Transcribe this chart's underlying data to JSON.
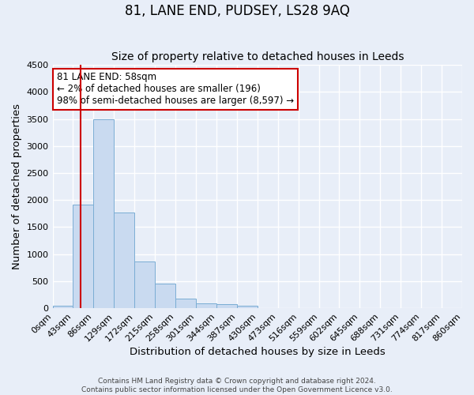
{
  "title": "81, LANE END, PUDSEY, LS28 9AQ",
  "subtitle": "Size of property relative to detached houses in Leeds",
  "xlabel": "Distribution of detached houses by size in Leeds",
  "ylabel": "Number of detached properties",
  "bar_values": [
    50,
    1920,
    3500,
    1770,
    860,
    460,
    175,
    95,
    70,
    50,
    0,
    0,
    0,
    0,
    0,
    0,
    0,
    0,
    0,
    0
  ],
  "bar_labels": [
    "0sqm",
    "43sqm",
    "86sqm",
    "129sqm",
    "172sqm",
    "215sqm",
    "258sqm",
    "301sqm",
    "344sqm",
    "387sqm",
    "430sqm",
    "473sqm",
    "516sqm",
    "559sqm",
    "602sqm",
    "645sqm",
    "688sqm",
    "731sqm",
    "774sqm",
    "817sqm",
    "860sqm"
  ],
  "bar_color": "#c9daf0",
  "bar_edge_color": "#7aadd4",
  "ylim": [
    0,
    4500
  ],
  "yticks": [
    0,
    500,
    1000,
    1500,
    2000,
    2500,
    3000,
    3500,
    4000,
    4500
  ],
  "property_line_color": "#cc0000",
  "annotation_text": "81 LANE END: 58sqm\n← 2% of detached houses are smaller (196)\n98% of semi-detached houses are larger (8,597) →",
  "annotation_box_color": "#ffffff",
  "annotation_box_edge": "#cc0000",
  "footer_line1": "Contains HM Land Registry data © Crown copyright and database right 2024.",
  "footer_line2": "Contains public sector information licensed under the Open Government Licence v3.0.",
  "background_color": "#e8eef8",
  "grid_color": "#ffffff",
  "title_fontsize": 12,
  "subtitle_fontsize": 10,
  "axis_label_fontsize": 9.5,
  "tick_fontsize": 8,
  "annotation_fontsize": 8.5,
  "footer_fontsize": 6.5
}
